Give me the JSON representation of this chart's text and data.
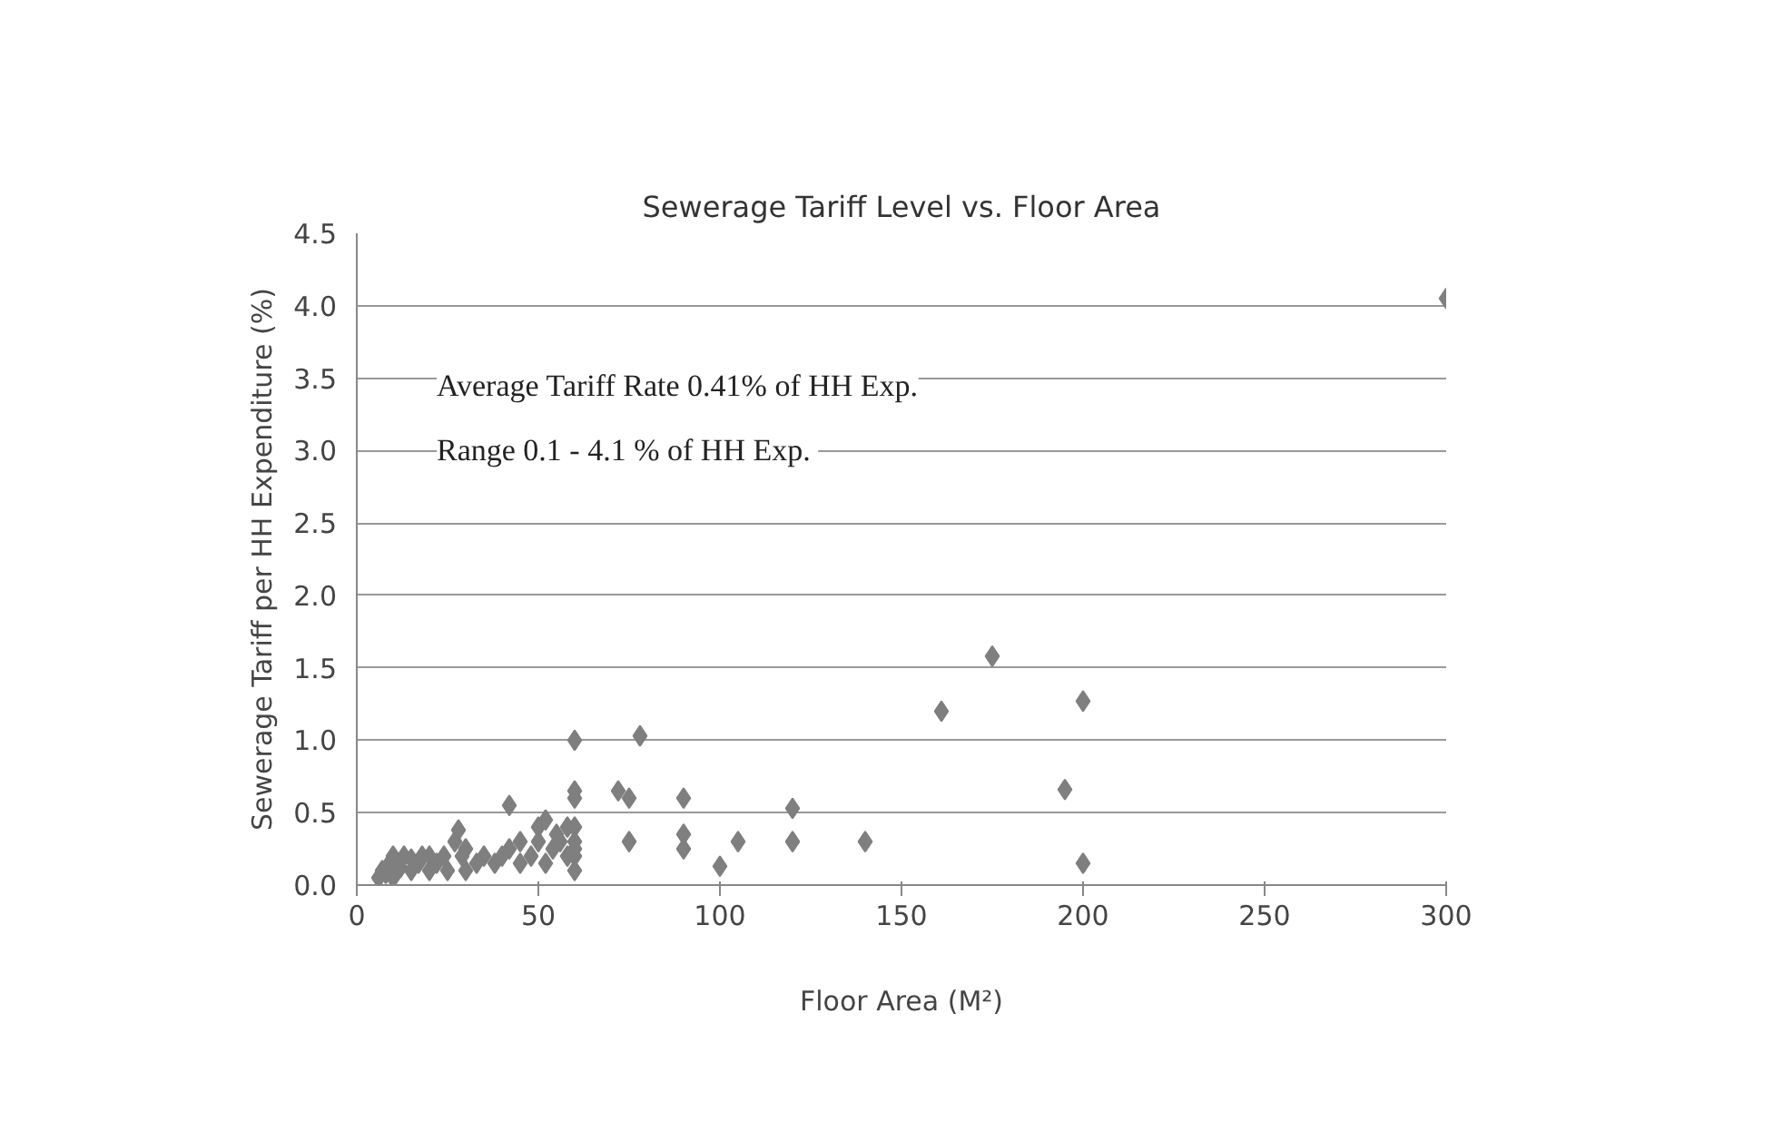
{
  "chart_data": {
    "type": "scatter",
    "title": "Sewerage Tariff Level vs. Floor Area",
    "xlabel": "Floor Area (M²)",
    "ylabel": "Sewerage Tariff per HH Expenditure (%)",
    "annotations": [
      "Average Tariff Rate 0.41% of HH Exp.",
      "Range  0.1 - 4.1 % of HH Exp."
    ],
    "xlim": [
      0,
      300
    ],
    "xticks": [
      0,
      50,
      100,
      150,
      200,
      250,
      300
    ],
    "ylim": [
      0,
      4.5
    ],
    "yticks": [
      {
        "value": 0,
        "label": "0.0"
      },
      {
        "value": 0.5,
        "label": "0.5"
      },
      {
        "value": 1,
        "label": "1.0"
      },
      {
        "value": 1.5,
        "label": "1.5"
      },
      {
        "value": 2,
        "label": "2.0"
      },
      {
        "value": 2.5,
        "label": "2.5"
      },
      {
        "value": 3,
        "label": "3.0"
      },
      {
        "value": 3.5,
        "label": "3.5"
      },
      {
        "value": 4,
        "label": "4.0"
      },
      {
        "value": 4.5,
        "label": "4.5"
      }
    ],
    "grid": "y",
    "marker": "diamond",
    "series": [
      {
        "color": "#7f7f7f",
        "x": [
          300,
          175,
          161,
          200,
          195,
          200,
          140,
          120,
          120,
          105,
          100,
          90,
          90,
          90,
          78,
          60,
          75,
          72,
          75,
          60,
          60,
          60,
          60,
          60,
          60,
          42,
          6,
          7,
          8,
          9,
          10,
          10,
          12,
          13,
          15,
          15,
          17,
          18,
          20,
          20,
          22,
          24,
          25,
          27,
          28,
          29,
          30,
          30,
          33,
          35,
          38,
          40,
          42,
          45,
          45,
          48,
          50,
          50,
          52,
          52,
          54,
          55,
          56,
          58,
          58,
          60
        ],
        "values": [
          4.05,
          1.58,
          1.2,
          1.27,
          0.66,
          0.15,
          0.3,
          0.53,
          0.3,
          0.3,
          0.13,
          0.6,
          0.35,
          0.25,
          1.03,
          1.0,
          0.6,
          0.65,
          0.3,
          0.65,
          0.6,
          0.4,
          0.3,
          0.2,
          0.1,
          0.55,
          0.05,
          0.1,
          0.08,
          0.15,
          0.2,
          0.05,
          0.12,
          0.2,
          0.1,
          0.18,
          0.15,
          0.2,
          0.1,
          0.2,
          0.15,
          0.2,
          0.1,
          0.3,
          0.38,
          0.2,
          0.1,
          0.25,
          0.15,
          0.2,
          0.15,
          0.2,
          0.25,
          0.15,
          0.3,
          0.2,
          0.3,
          0.4,
          0.15,
          0.45,
          0.25,
          0.35,
          0.3,
          0.2,
          0.4,
          0.25
        ]
      }
    ]
  }
}
